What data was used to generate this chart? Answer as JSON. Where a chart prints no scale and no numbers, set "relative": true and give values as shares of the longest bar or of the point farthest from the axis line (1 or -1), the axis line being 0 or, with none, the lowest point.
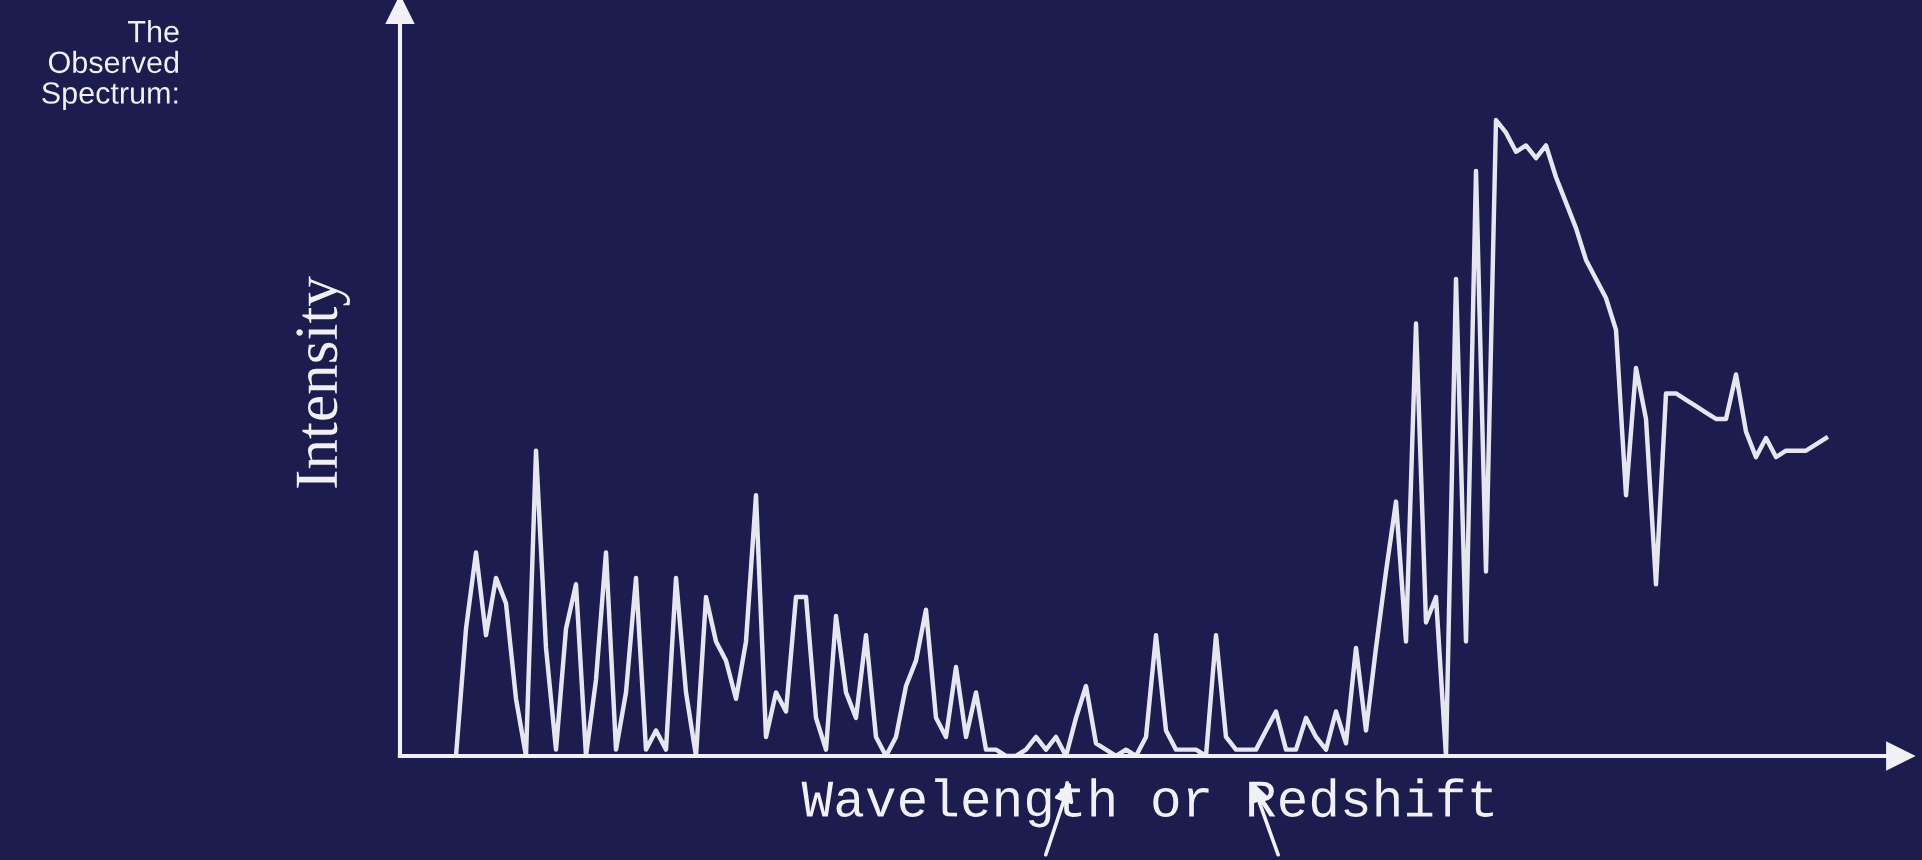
{
  "chart_data": {
    "type": "line",
    "title": "The\nObserved\nSpectrum:",
    "xlabel": "Wavelength or Redshift",
    "ylabel": "Intensity",
    "relative": true,
    "categories": [
      null,
      null,
      null,
      null,
      null,
      null,
      null,
      null,
      null,
      null,
      null,
      null,
      null,
      null,
      null,
      null,
      null,
      null,
      null,
      null,
      null,
      null,
      null,
      null,
      null,
      null,
      null,
      null,
      null,
      null,
      null,
      null,
      null,
      null,
      null,
      null,
      null,
      null,
      null,
      null,
      null,
      null,
      null,
      null,
      null,
      null,
      null,
      null,
      null,
      null,
      null,
      null,
      null,
      null,
      null,
      null,
      null,
      null,
      null,
      null,
      null,
      null,
      null,
      null,
      null,
      null,
      null,
      null,
      null,
      null,
      null,
      null,
      null,
      null,
      null,
      null,
      null,
      null,
      null,
      null,
      null,
      null,
      null,
      null,
      null,
      null,
      null,
      null,
      null,
      null,
      null,
      null,
      null,
      null,
      null,
      null,
      null,
      null,
      null,
      null,
      null,
      null,
      null,
      null,
      null,
      null,
      null,
      null,
      null,
      null,
      null,
      null,
      null,
      null,
      null,
      null,
      null,
      null,
      null,
      null,
      null,
      null,
      null,
      null,
      null,
      null,
      null,
      null,
      null,
      null,
      null,
      null,
      null,
      null,
      null,
      null,
      null,
      null
    ],
    "series": [
      {
        "color": "#e6e6f0",
        "values": [
          0,
          0.2,
          0.32,
          0.19,
          0.28,
          0.24,
          0.09,
          0,
          0.48,
          0.17,
          0.01,
          0.2,
          0.27,
          0,
          0.12,
          0.32,
          0.01,
          0.1,
          0.28,
          0.01,
          0.04,
          0.01,
          0.28,
          0.1,
          0,
          0.25,
          0.18,
          0.15,
          0.09,
          0.18,
          0.41,
          0.03,
          0.1,
          0.07,
          0.25,
          0.25,
          0.06,
          0.01,
          0.22,
          0.1,
          0.06,
          0.19,
          0.03,
          0,
          0.03,
          0.11,
          0.15,
          0.23,
          0.06,
          0.03,
          0.14,
          0.03,
          0.1,
          0.01,
          0.01,
          0,
          0,
          0.01,
          0.03,
          0.01,
          0.03,
          0,
          0.06,
          0.11,
          0.02,
          0.01,
          0,
          0.01,
          0,
          0.03,
          0.19,
          0.04,
          0.01,
          0.01,
          0.01,
          0,
          0.19,
          0.03,
          0.01,
          0.01,
          0.01,
          0.04,
          0.07,
          0.01,
          0.01,
          0.06,
          0.03,
          0.01,
          0.07,
          0.02,
          0.17,
          0.04,
          0.17,
          0.29,
          0.4,
          0.18,
          0.68,
          0.21,
          0.25,
          0,
          0.75,
          0.18,
          0.92,
          0.29,
          1,
          0.98,
          0.95,
          0.96,
          0.94,
          0.96,
          0.91,
          0.87,
          0.83,
          0.78,
          0.75,
          0.72,
          0.67,
          0.41,
          0.61,
          0.53,
          0.27,
          0.57,
          0.57,
          0.56,
          0.55,
          0.54,
          0.53,
          0.53,
          0.6,
          0.51,
          0.47,
          0.5,
          0.47,
          0.48,
          0.48,
          0.48,
          0.49,
          0.5
        ]
      }
    ]
  }
}
